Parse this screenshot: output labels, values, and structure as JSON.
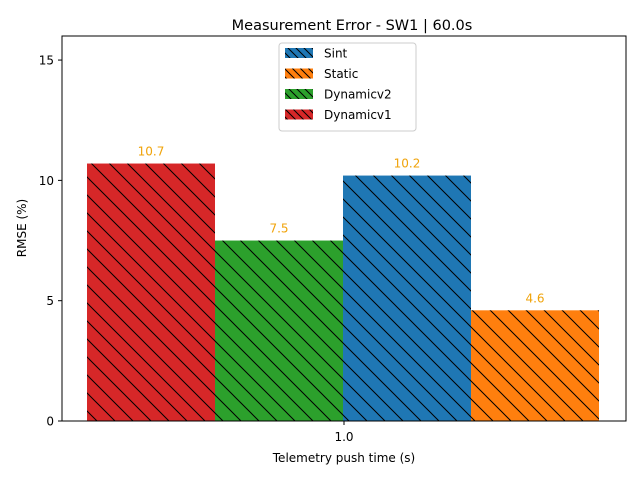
{
  "chart_data": {
    "type": "bar",
    "title": "Measurement Error - SW1 | 60.0s",
    "xlabel": "Telemetry push time (s)",
    "ylabel": "RMSE (%)",
    "categories": [
      "1.0"
    ],
    "ylim": [
      0,
      16
    ],
    "yticks": [
      0,
      5,
      10,
      15
    ],
    "ytick_labels": [
      "0",
      "5",
      "10",
      "15"
    ],
    "grid": false,
    "legend_position": "top-center",
    "bar_order": [
      "Dynamicv1",
      "Dynamicv2",
      "Sint",
      "Static"
    ],
    "series": [
      {
        "name": "Sint",
        "values": [
          10.2
        ],
        "color": "#1f77b4",
        "data_label": "10.2"
      },
      {
        "name": "Static",
        "values": [
          4.6
        ],
        "color": "#ff7f0e",
        "data_label": "4.6"
      },
      {
        "name": "Dynamicv2",
        "values": [
          7.5
        ],
        "color": "#2ca02c",
        "data_label": "7.5"
      },
      {
        "name": "Dynamicv1",
        "values": [
          10.7
        ],
        "color": "#d62728",
        "data_label": "10.7"
      }
    ],
    "hatch": "backslash",
    "data_label_color": "#f0a30a"
  }
}
